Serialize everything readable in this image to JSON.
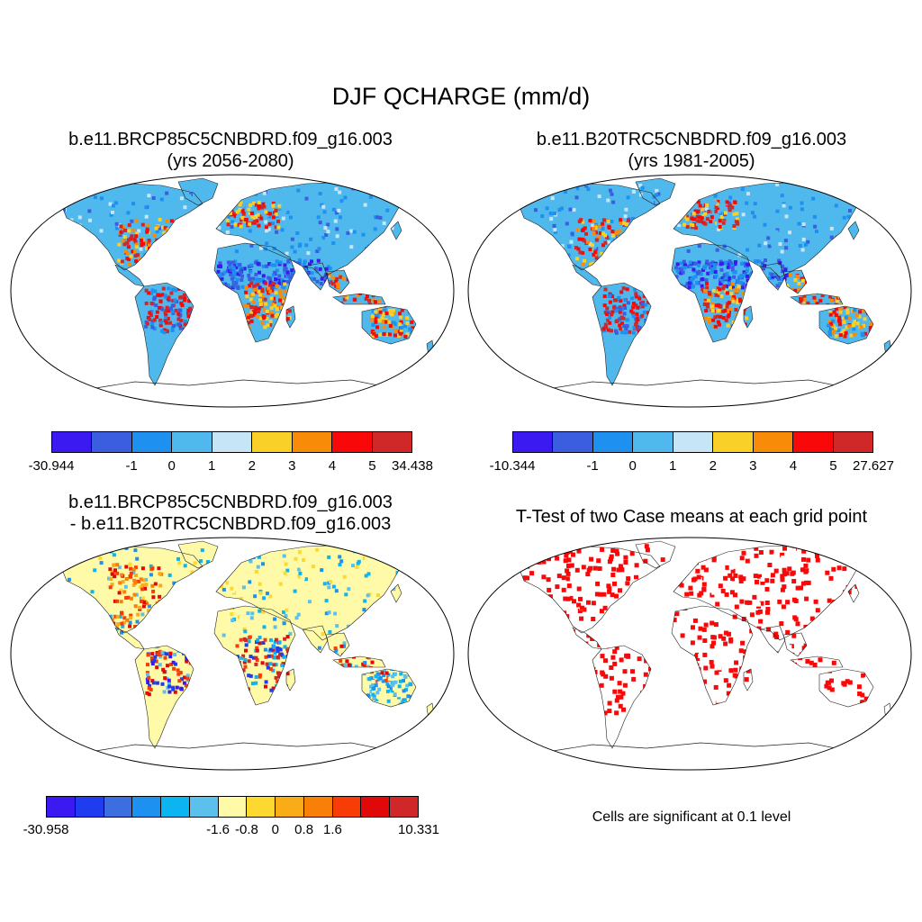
{
  "title": "DJF QCHARGE (mm/d)",
  "panels": [
    {
      "title_line1": "b.e11.BRCP85C5CNBDRD.f09_g16.003",
      "title_line2": "(yrs 2056-2080)",
      "colorbar": {
        "colors": [
          "#3a1af0",
          "#3b5ee0",
          "#1e90f0",
          "#4fb8ec",
          "#c6e6f8",
          "#f8d028",
          "#f88c08",
          "#f80808",
          "#d02828"
        ],
        "labels": [
          "-30.944",
          "-1",
          "0",
          "1",
          "2",
          "3",
          "4",
          "5",
          "34.438"
        ]
      }
    },
    {
      "title_line1": "b.e11.B20TRC5CNBDRD.f09_g16.003",
      "title_line2": "(yrs 1981-2005)",
      "colorbar": {
        "colors": [
          "#3a1af0",
          "#3b5ee0",
          "#1e90f0",
          "#4fb8ec",
          "#c6e6f8",
          "#f8d028",
          "#f88c08",
          "#f80808",
          "#d02828"
        ],
        "labels": [
          "-10.344",
          "-1",
          "0",
          "1",
          "2",
          "3",
          "4",
          "5",
          "27.627"
        ]
      }
    },
    {
      "title_line1": "b.e11.BRCP85C5CNBDRD.f09_g16.003",
      "title_line2": "- b.e11.B20TRC5CNBDRD.f09_g16.003",
      "colorbar": {
        "colors": [
          "#3a1af0",
          "#1f3cf0",
          "#3c6ee0",
          "#1e90f0",
          "#0cb4f0",
          "#5cc0ec",
          "#fffaa8",
          "#fcd830",
          "#f8ac18",
          "#f88008",
          "#f83c08",
          "#e00808",
          "#d02828"
        ],
        "labels": [
          "-30.958",
          "-1.6",
          "-0.8",
          "0",
          "0.8",
          "1.6",
          "10.331"
        ]
      }
    },
    {
      "title_line1": "T-Test of two Case means at each grid point",
      "note": "Cells are significant at 0.1 level"
    }
  ],
  "colors": {
    "land_base_abs": "#4fb8ec",
    "land_base_diff": "#fffaa8",
    "significant": "#f80808"
  }
}
